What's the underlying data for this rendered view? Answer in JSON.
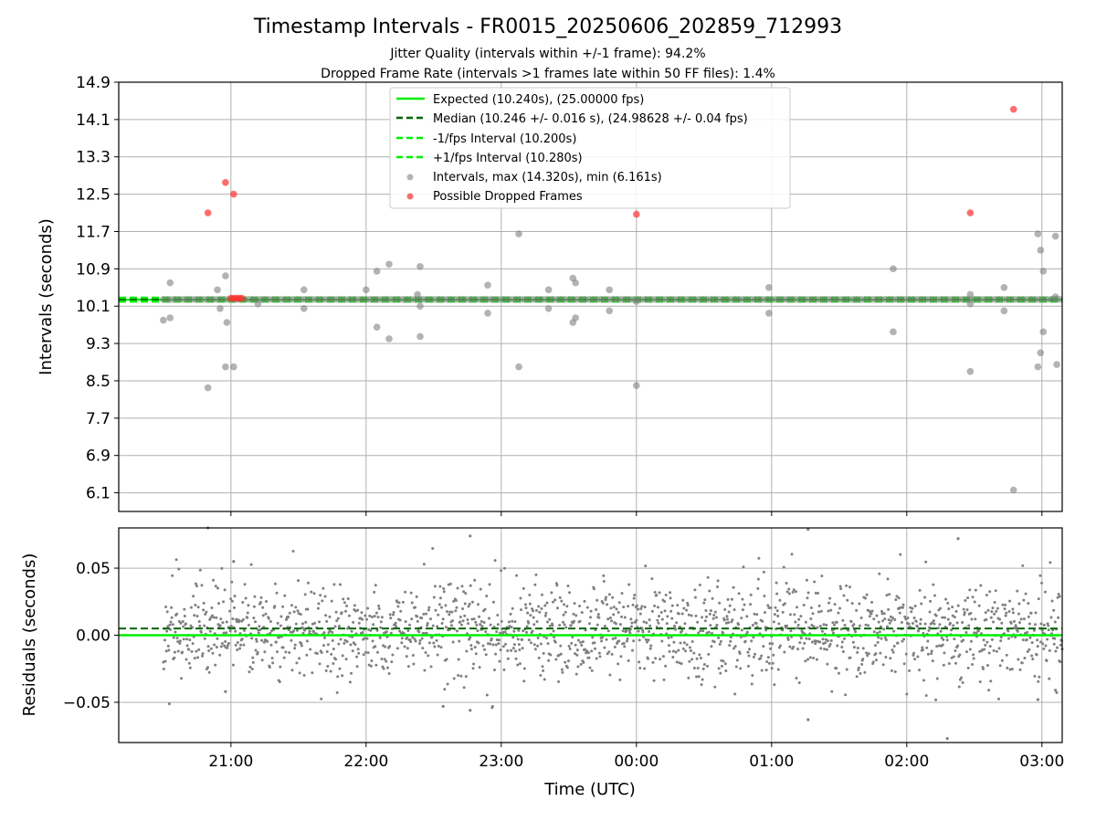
{
  "chart_data": {
    "title": "Timestamp Intervals - FR0015_20250606_202859_712993",
    "subtitle_lines": [
      "Jitter Quality (intervals within +/-1 frame): 94.2%",
      "Dropped Frame Rate (intervals >1 frames late within 50 FF files): 1.4%"
    ],
    "colors": {
      "expected": "#00ee00",
      "median": "#006400",
      "fps_band": "#00ee00",
      "intervals": "#808080",
      "dropped": "#ff3030",
      "grid": "#b0b0b0"
    },
    "x_axis": {
      "label": "Time (UTC)",
      "range_hours": [
        20.17,
        27.15
      ],
      "ticks": [
        {
          "value": 21,
          "label": "21:00"
        },
        {
          "value": 22,
          "label": "22:00"
        },
        {
          "value": 23,
          "label": "23:00"
        },
        {
          "value": 24,
          "label": "00:00"
        },
        {
          "value": 25,
          "label": "01:00"
        },
        {
          "value": 26,
          "label": "02:00"
        },
        {
          "value": 27,
          "label": "03:00"
        }
      ]
    },
    "top": {
      "type": "scatter",
      "ylabel": "Intervals (seconds)",
      "ylim": [
        5.7,
        14.9
      ],
      "yticks": [
        "14.9",
        "14.1",
        "13.3",
        "12.5",
        "11.7",
        "10.9",
        "10.1",
        "9.3",
        "8.5",
        "7.7",
        "6.9",
        "6.1"
      ],
      "grid": true,
      "legend_position": "upper-center",
      "lines": [
        {
          "name": "Expected (10.240s), (25.00000 fps)",
          "y": 10.24,
          "style": "solid",
          "color_key": "expected"
        },
        {
          "name": "Median (10.246 +/- 0.016 s), (24.98628 +/- 0.04 fps)",
          "y": 10.246,
          "style": "dashed",
          "color_key": "median"
        },
        {
          "name": "-1/fps Interval (10.200s)",
          "y": 10.2,
          "style": "dashed",
          "color_key": "fps_band"
        },
        {
          "name": "+1/fps Interval (10.280s)",
          "y": 10.28,
          "style": "dashed",
          "color_key": "fps_band"
        }
      ],
      "intervals_legend": "Intervals, max (14.320s), min (6.161s)",
      "dropped_legend": "Possible Dropped Frames",
      "baseline_range": [
        20.5,
        27.15
      ],
      "intervals": [
        [
          20.5,
          9.8
        ],
        [
          20.55,
          10.6
        ],
        [
          20.55,
          9.85
        ],
        [
          20.83,
          8.35
        ],
        [
          20.9,
          10.45
        ],
        [
          20.92,
          10.05
        ],
        [
          20.96,
          10.75
        ],
        [
          20.97,
          9.75
        ],
        [
          20.96,
          8.8
        ],
        [
          21.02,
          8.8
        ],
        [
          21.2,
          10.15
        ],
        [
          21.54,
          10.45
        ],
        [
          21.54,
          10.05
        ],
        [
          22.0,
          10.45
        ],
        [
          22.08,
          10.85
        ],
        [
          22.08,
          9.65
        ],
        [
          22.17,
          11.0
        ],
        [
          22.17,
          9.4
        ],
        [
          22.38,
          10.35
        ],
        [
          22.4,
          10.95
        ],
        [
          22.4,
          9.45
        ],
        [
          22.4,
          10.1
        ],
        [
          22.9,
          10.55
        ],
        [
          22.9,
          9.95
        ],
        [
          23.13,
          11.65
        ],
        [
          23.13,
          8.8
        ],
        [
          23.35,
          10.45
        ],
        [
          23.35,
          10.05
        ],
        [
          23.53,
          10.7
        ],
        [
          23.53,
          9.75
        ],
        [
          23.55,
          10.6
        ],
        [
          23.55,
          9.85
        ],
        [
          23.8,
          10.45
        ],
        [
          23.8,
          10.0
        ],
        [
          24.0,
          8.4
        ],
        [
          24.0,
          10.2
        ],
        [
          24.98,
          10.5
        ],
        [
          24.98,
          9.95
        ],
        [
          25.9,
          10.9
        ],
        [
          25.9,
          9.55
        ],
        [
          26.47,
          10.35
        ],
        [
          26.47,
          8.7
        ],
        [
          26.47,
          10.15
        ],
        [
          26.72,
          10.5
        ],
        [
          26.72,
          10.0
        ],
        [
          26.79,
          6.16
        ],
        [
          26.97,
          11.65
        ],
        [
          26.97,
          8.8
        ],
        [
          26.99,
          11.3
        ],
        [
          26.99,
          9.1
        ],
        [
          27.01,
          10.85
        ],
        [
          27.01,
          9.55
        ],
        [
          27.1,
          11.6
        ],
        [
          27.1,
          10.3
        ],
        [
          27.11,
          8.85
        ]
      ],
      "dropped": [
        [
          20.83,
          12.1
        ],
        [
          20.96,
          12.75
        ],
        [
          21.02,
          12.5
        ],
        [
          21.0,
          10.27
        ],
        [
          21.02,
          10.27
        ],
        [
          21.04,
          10.27
        ],
        [
          21.06,
          10.27
        ],
        [
          21.08,
          10.27
        ],
        [
          24.0,
          12.07
        ],
        [
          26.47,
          12.1
        ],
        [
          26.79,
          14.32
        ]
      ]
    },
    "bottom": {
      "type": "scatter",
      "ylabel": "Residuals (seconds)",
      "ylim": [
        -0.08,
        0.08
      ],
      "yticks": [
        {
          "value": 0.05,
          "label": "0.05"
        },
        {
          "value": 0.0,
          "label": "0.00"
        },
        {
          "value": -0.05,
          "label": "−0.05"
        }
      ],
      "grid": true,
      "expected_level": 0.0,
      "median_level": 0.005,
      "residual_x_range": [
        20.5,
        27.15
      ],
      "residual_spread_sd": 0.018,
      "residual_mean": 0.004,
      "residual_point_count": 1800,
      "notable_points": [
        [
          20.83,
          0.08
        ],
        [
          20.96,
          -0.042
        ],
        [
          21.02,
          0.055
        ],
        [
          22.57,
          -0.053
        ],
        [
          22.77,
          0.074
        ],
        [
          22.77,
          -0.056
        ],
        [
          25.27,
          0.079
        ],
        [
          25.27,
          -0.063
        ],
        [
          26.3,
          -0.077
        ],
        [
          26.38,
          0.072
        ],
        [
          26.97,
          -0.048
        ],
        [
          27.1,
          -0.041
        ]
      ]
    }
  }
}
